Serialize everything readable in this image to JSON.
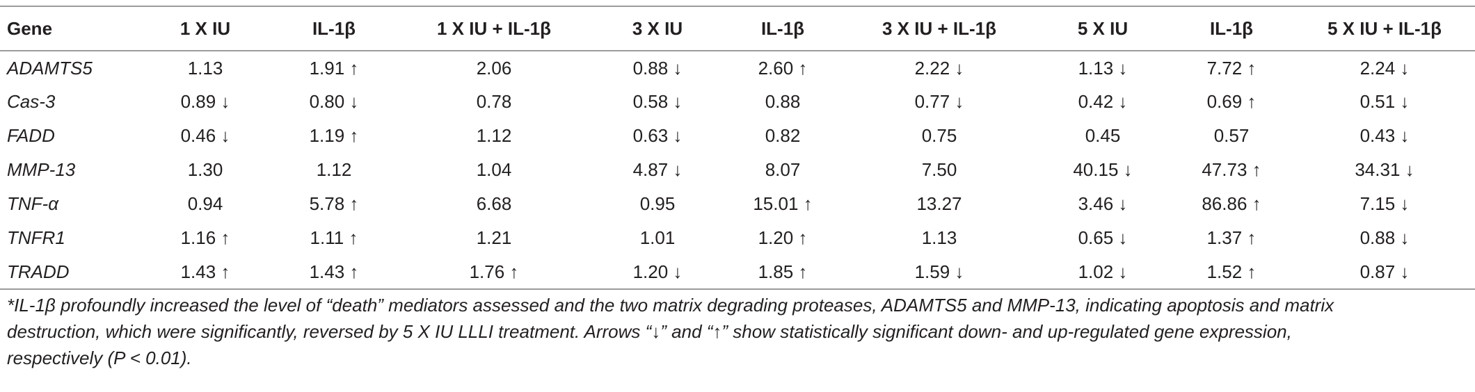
{
  "table": {
    "headers": [
      "Gene",
      "1 X IU",
      "IL-1β",
      "1 X IU + IL-1β",
      "3 X IU",
      "IL-1β",
      "3 X IU + IL-1β",
      "5 X IU",
      "IL-1β",
      "5 X IU + IL-1β"
    ],
    "rows": [
      [
        "ADAMTS5",
        "1.13",
        "1.91 ↑",
        "2.06",
        "0.88 ↓",
        "2.60 ↑",
        "2.22 ↓",
        "1.13 ↓",
        "7.72 ↑",
        "2.24 ↓"
      ],
      [
        "Cas-3",
        "0.89 ↓",
        "0.80 ↓",
        "0.78",
        "0.58 ↓",
        "0.88",
        "0.77 ↓",
        "0.42 ↓",
        "0.69 ↑",
        "0.51 ↓"
      ],
      [
        "FADD",
        "0.46 ↓",
        "1.19 ↑",
        "1.12",
        "0.63 ↓",
        "0.82",
        "0.75",
        "0.45",
        "0.57",
        "0.43 ↓"
      ],
      [
        "MMP-13",
        "1.30",
        "1.12",
        "1.04",
        "4.87 ↓",
        "8.07",
        "7.50",
        "40.15 ↓",
        "47.73 ↑",
        "34.31 ↓"
      ],
      [
        "TNF-α",
        "0.94",
        "5.78 ↑",
        "6.68",
        "0.95",
        "15.01 ↑",
        "13.27",
        "3.46 ↓",
        "86.86 ↑",
        "7.15 ↓"
      ],
      [
        "TNFR1",
        "1.16 ↑",
        "1.11 ↑",
        "1.21",
        "1.01",
        "1.20 ↑",
        "1.13",
        "0.65 ↓",
        "1.37 ↑",
        "0.88 ↓"
      ],
      [
        "TRADD",
        "1.43 ↑",
        "1.43 ↑",
        "1.76 ↑",
        "1.20 ↓",
        "1.85 ↑",
        "1.59 ↓",
        "1.02 ↓",
        "1.52 ↑",
        "0.87 ↓"
      ]
    ]
  },
  "footnote": {
    "lines": [
      "*IL-1β profoundly increased the level of “death” mediators assessed and the two matrix degrading proteases, ADAMTS5 and MMP-13, indicating apoptosis and matrix",
      "destruction, which were significantly, reversed by 5 X IU LLLI treatment. Arrows “↓” and “↑” show statistically significant down- and up-regulated gene expression,",
      "respectively (P < 0.01)."
    ]
  }
}
